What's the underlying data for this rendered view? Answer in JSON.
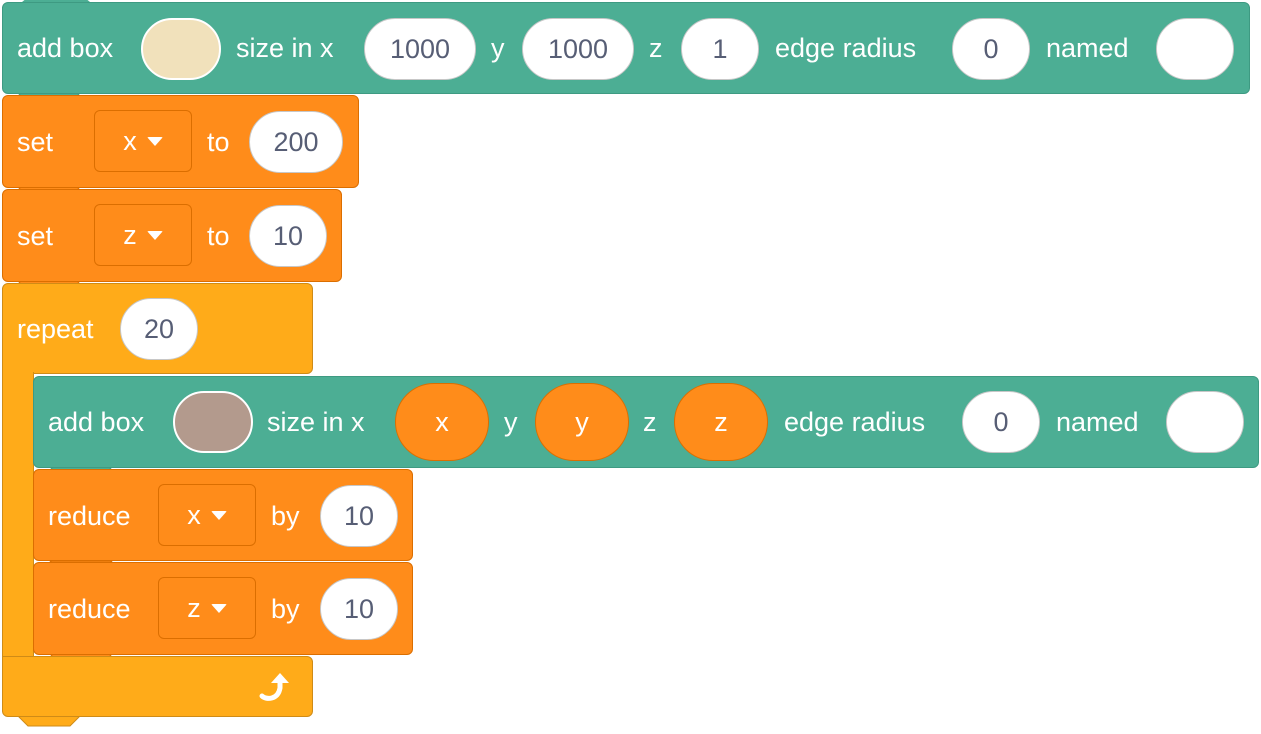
{
  "colors": {
    "looks_teal": "#4cae94",
    "variables_orange": "#ff8c1a",
    "control_yellow": "#ffab19",
    "box1_color": "#f1e1bb",
    "box2_color": "#b39a8d"
  },
  "block1": {
    "label": "add box",
    "size_label": "size in x",
    "x_value": "1000",
    "y_label": "y",
    "y_value": "1000",
    "z_label": "z",
    "z_value": "1",
    "radius_label": "edge radius",
    "radius_value": "0",
    "named_label": "named",
    "name_value": ""
  },
  "block2": {
    "label": "set",
    "variable": "x",
    "to_label": "to",
    "value": "200"
  },
  "block3": {
    "label": "set",
    "variable": "z",
    "to_label": "to",
    "value": "10"
  },
  "repeat": {
    "label": "repeat",
    "count": "20",
    "loop_icon": "loop-arrow-icon"
  },
  "inner_add_box": {
    "label": "add box",
    "size_label": "size in x",
    "x_var": "x",
    "y_label": "y",
    "y_var": "y",
    "z_label": "z",
    "z_var": "z",
    "radius_label": "edge radius",
    "radius_value": "0",
    "named_label": "named",
    "name_value": ""
  },
  "reduce_x": {
    "label": "reduce",
    "variable": "x",
    "by_label": "by",
    "value": "10"
  },
  "reduce_z": {
    "label": "reduce",
    "variable": "z",
    "by_label": "by",
    "value": "10"
  }
}
